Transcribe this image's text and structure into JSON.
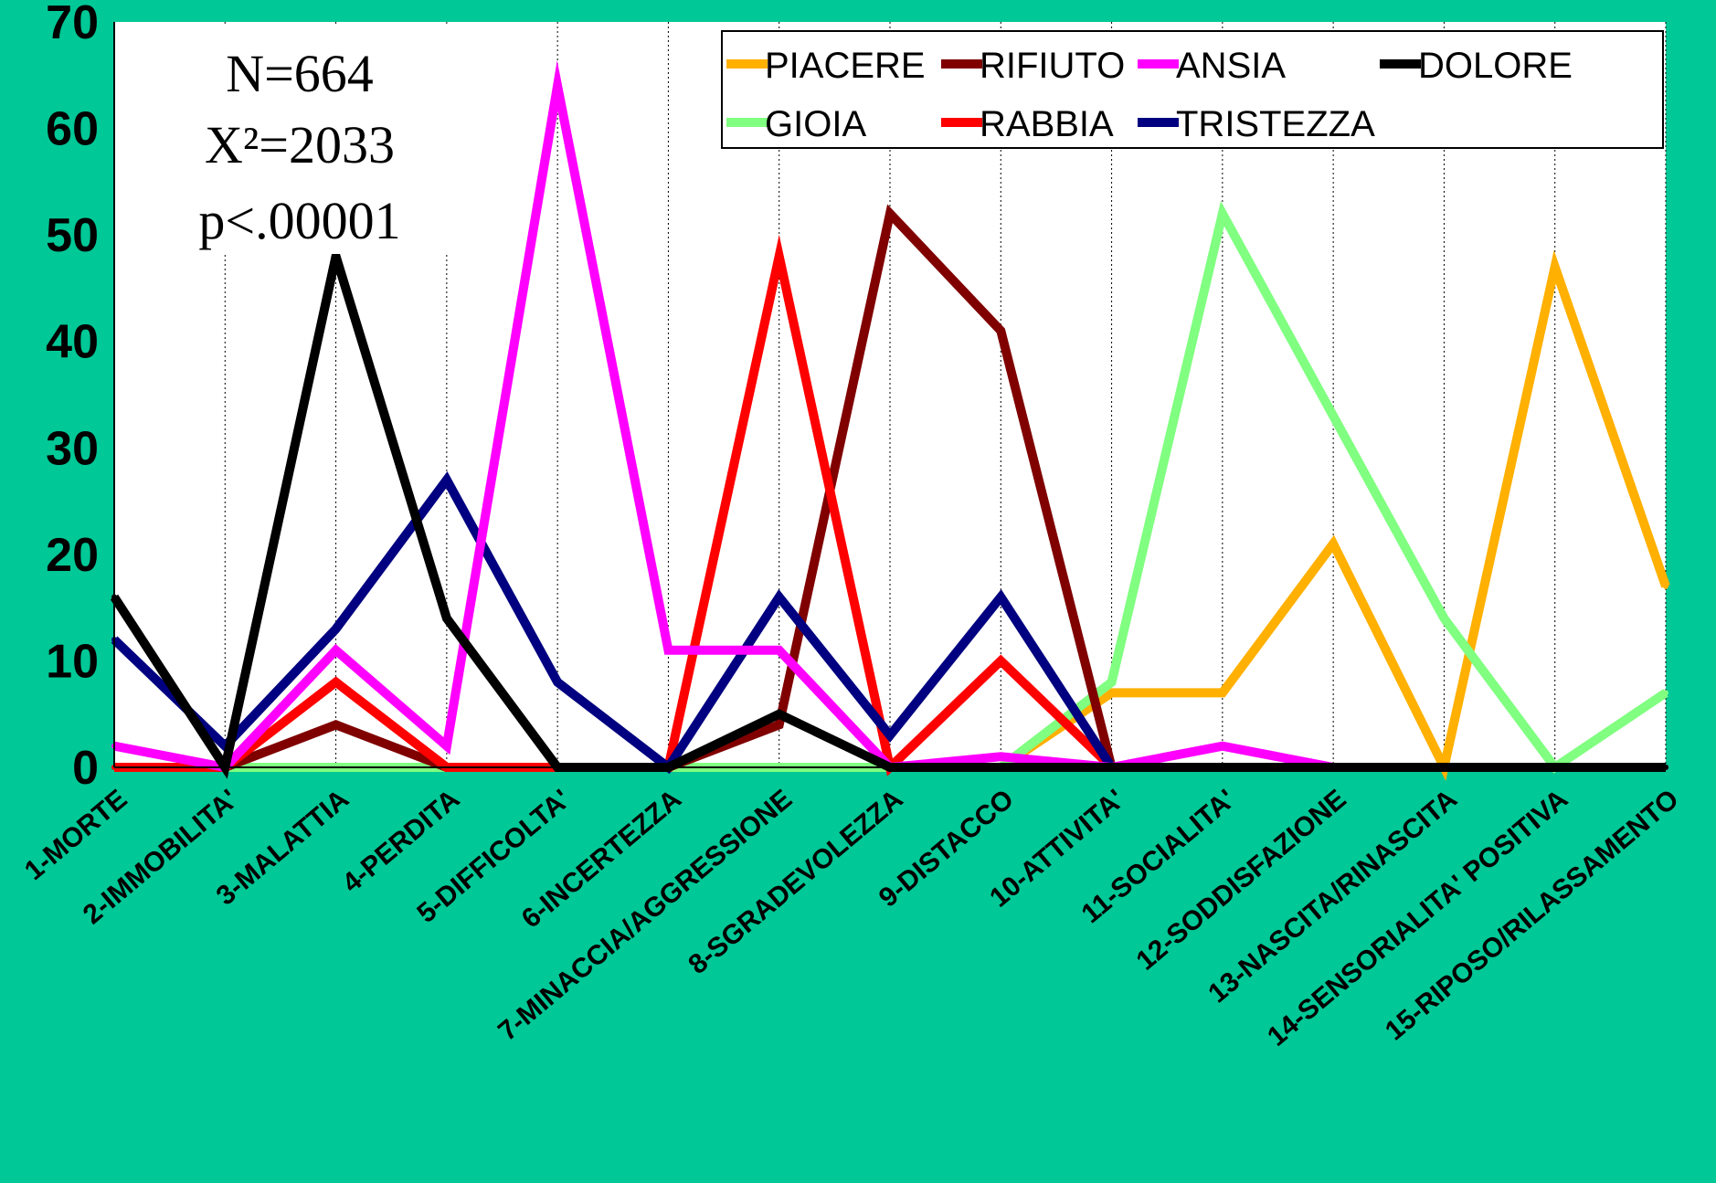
{
  "chart_data": {
    "type": "line",
    "title": "",
    "xlabel": "",
    "ylabel": "",
    "ylim": [
      0,
      70
    ],
    "yticks": [
      "0",
      "10",
      "20",
      "30",
      "40",
      "50",
      "60",
      "70"
    ],
    "grid": "vertical dotted",
    "legend_position": "top-right",
    "categories": [
      "1-MORTE",
      "2-IMMOBILITA'",
      "3-MALATTIA",
      "4-PERDITA",
      "5-DIFFICOLTA'",
      "6-INCERTEZZA",
      "7-MINACCIA/AGGRESSIONE",
      "8-SGRADEVOLEZZA",
      "9-DISTACCO",
      "10-ATTIVITA'",
      "11-SOCIALITA'",
      "12-SODDISFAZIONE",
      "13-NASCITA/RINASCITA",
      "14-SENSORIALITA' POSITIVA",
      "15-RIPOSO/RILASSAMENTO"
    ],
    "series": [
      {
        "name": "PIACERE",
        "color": "#ffb000",
        "values": [
          0,
          0,
          0,
          0,
          0,
          0,
          0,
          0,
          0,
          7,
          7,
          21,
          0,
          47,
          17
        ]
      },
      {
        "name": "GIOIA",
        "color": "#80ff80",
        "values": [
          0,
          0,
          0,
          0,
          0,
          0,
          0,
          0,
          0,
          8,
          52,
          33,
          14,
          0,
          7
        ]
      },
      {
        "name": "RIFIUTO",
        "color": "#800000",
        "values": [
          0,
          0,
          4,
          0,
          0,
          0,
          4,
          52,
          41,
          0,
          0,
          0,
          0,
          0,
          0
        ]
      },
      {
        "name": "RABBIA",
        "color": "#ff0000",
        "values": [
          0,
          0,
          8,
          0,
          0,
          0,
          48,
          0,
          10,
          0,
          0,
          0,
          0,
          0,
          0
        ]
      },
      {
        "name": "TRISTEZZA",
        "color": "#000080",
        "values": [
          12,
          2,
          13,
          27,
          8,
          0,
          16,
          3,
          16,
          0,
          0,
          0,
          0,
          0,
          0
        ]
      },
      {
        "name": "ANSIA",
        "color": "#ff00ff",
        "values": [
          2,
          0,
          11,
          2,
          64,
          11,
          11,
          0,
          1,
          0,
          2,
          0,
          0,
          0,
          0
        ]
      },
      {
        "name": "DOLORE",
        "color": "#000000",
        "values": [
          16,
          0,
          48,
          14,
          0,
          0,
          5,
          0,
          0,
          0,
          0,
          0,
          0,
          0,
          0
        ]
      }
    ],
    "legend_order": [
      "PIACERE",
      "RIFIUTO",
      "ANSIA",
      "DOLORE",
      "GIOIA",
      "RABBIA",
      "TRISTEZZA"
    ],
    "annotation": [
      "N=664",
      "X²=2033",
      "p<.00001"
    ]
  }
}
